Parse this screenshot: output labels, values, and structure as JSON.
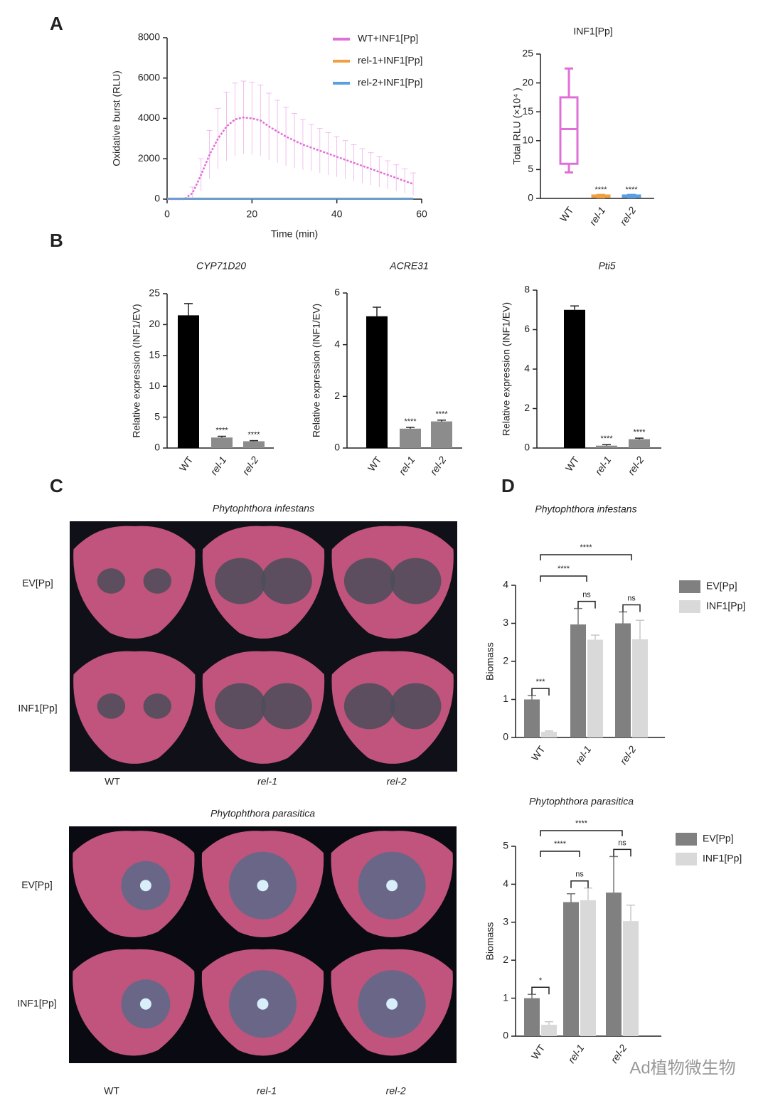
{
  "panels": [
    "A",
    "B",
    "C",
    "D"
  ],
  "watermark": "Ad植物微生物",
  "photos": [
    {
      "title": "Phytophthora infestans",
      "rows": [
        "EV[Pp]",
        "INF1[Pp]"
      ],
      "columns": [
        "WT",
        "rel-1",
        "rel-2"
      ]
    },
    {
      "title": "Phytophthora parasitica",
      "rows": [
        "EV[Pp]",
        "INF1[Pp]"
      ],
      "columns": [
        "WT",
        "rel-1",
        "rel-2"
      ]
    }
  ],
  "chart_data": [
    {
      "type": "line",
      "xlabel": "Time (min)",
      "ylabel": "Oxidative burst (RLU)",
      "x": [
        0,
        2,
        4,
        6,
        8,
        10,
        12,
        14,
        16,
        18,
        20,
        22,
        24,
        26,
        28,
        30,
        32,
        34,
        36,
        38,
        40,
        42,
        44,
        46,
        48,
        50,
        52,
        54,
        56,
        58
      ],
      "xlim": [
        0,
        60
      ],
      "xticks": [
        0,
        20,
        40,
        60
      ],
      "ylim": [
        0,
        8000
      ],
      "yticks": [
        0,
        2000,
        4000,
        6000,
        8000
      ],
      "series": [
        {
          "name": "WT+INF1[Pp]",
          "color": "#e070d8",
          "values": [
            0,
            0,
            0,
            300,
            1200,
            2200,
            3000,
            3600,
            3950,
            4050,
            4000,
            3900,
            3600,
            3350,
            3100,
            2900,
            2700,
            2550,
            2400,
            2250,
            2100,
            1950,
            1800,
            1650,
            1500,
            1350,
            1200,
            1050,
            900,
            750
          ],
          "errors": [
            0,
            0,
            0,
            300,
            800,
            1200,
            1500,
            1700,
            1800,
            1800,
            1800,
            1750,
            1650,
            1550,
            1450,
            1350,
            1250,
            1150,
            1100,
            1050,
            1000,
            950,
            900,
            850,
            800,
            750,
            700,
            650,
            600,
            550
          ]
        },
        {
          "name": "rel-1+INF1[Pp]",
          "color": "#f0a040",
          "values": [
            30,
            30,
            30,
            30,
            30,
            30,
            30,
            30,
            30,
            30,
            30,
            30,
            30,
            30,
            30,
            30,
            30,
            30,
            30,
            30,
            30,
            30,
            30,
            30,
            30,
            30,
            30,
            30,
            30,
            30
          ]
        },
        {
          "name": "rel-2+INF1[Pp]",
          "color": "#5aa0e0",
          "values": [
            20,
            20,
            20,
            20,
            20,
            20,
            20,
            20,
            20,
            20,
            20,
            20,
            20,
            20,
            20,
            20,
            20,
            20,
            20,
            20,
            20,
            20,
            20,
            20,
            20,
            20,
            20,
            20,
            20,
            20
          ]
        }
      ]
    },
    {
      "type": "box",
      "title": "INF1[Pp]",
      "ylabel": "Total RLU (×10⁴ )",
      "categories": [
        "WT",
        "rel-1",
        "rel-2"
      ],
      "colors": [
        "#e070d8",
        "#f0a040",
        "#5aa0e0"
      ],
      "boxes": [
        {
          "min": 4.5,
          "q1": 6,
          "median": 12,
          "q3": 17.5,
          "max": 22.5
        },
        {
          "min": 0.2,
          "q1": 0.3,
          "median": 0.4,
          "q3": 0.5,
          "max": 0.6
        },
        {
          "min": 0.2,
          "q1": 0.3,
          "median": 0.4,
          "q3": 0.5,
          "max": 0.6
        }
      ],
      "labels": [
        null,
        "****",
        "****"
      ],
      "ylim": [
        0,
        25
      ],
      "yticks": [
        0,
        5,
        10,
        15,
        20,
        25
      ]
    },
    {
      "type": "bar",
      "title": "CYP71D20",
      "ylabel": "Relative expression (INF1/EV)",
      "categories": [
        "WT",
        "rel-1",
        "rel-2"
      ],
      "colors": [
        "#000000",
        "#8c8c8c",
        "#8c8c8c"
      ],
      "values": [
        21.5,
        1.7,
        1.1
      ],
      "errors": [
        1.9,
        0.2,
        0.1
      ],
      "labels": [
        null,
        "****",
        "****"
      ],
      "ylim": [
        0,
        25
      ],
      "yticks": [
        0,
        5,
        10,
        15,
        20,
        25
      ]
    },
    {
      "type": "bar",
      "title": "ACRE31",
      "ylabel": "Relative expression (INF1/EV)",
      "categories": [
        "WT",
        "rel-1",
        "rel-2"
      ],
      "colors": [
        "#000000",
        "#8c8c8c",
        "#8c8c8c"
      ],
      "values": [
        5.1,
        0.75,
        1.03
      ],
      "errors": [
        0.35,
        0.05,
        0.05
      ],
      "labels": [
        null,
        "****",
        "****"
      ],
      "ylim": [
        0,
        6
      ],
      "yticks": [
        0,
        2,
        4,
        6
      ]
    },
    {
      "type": "bar",
      "title": "Pti5",
      "ylabel": "Relative expression (INF1/EV)",
      "categories": [
        "WT",
        "rel-1",
        "rel-2"
      ],
      "colors": [
        "#000000",
        "#8c8c8c",
        "#8c8c8c"
      ],
      "values": [
        7.0,
        0.12,
        0.45
      ],
      "errors": [
        0.2,
        0.05,
        0.05
      ],
      "labels": [
        null,
        "****",
        "****"
      ],
      "ylim": [
        0,
        8
      ],
      "yticks": [
        0,
        2,
        4,
        6,
        8
      ]
    },
    {
      "type": "grouped_bar",
      "title": "Phytophthora infestans",
      "ylabel": "Biomass",
      "categories": [
        "WT",
        "rel-1",
        "rel-2"
      ],
      "series": [
        {
          "name": "EV[Pp]",
          "color": "#808080",
          "values": [
            1.0,
            2.97,
            3.0
          ],
          "errors": [
            0.1,
            0.42,
            0.3
          ]
        },
        {
          "name": "INF1[Pp]",
          "color": "#d9d9d9",
          "values": [
            0.15,
            2.57,
            2.58
          ],
          "errors": [
            0.02,
            0.12,
            0.5
          ]
        }
      ],
      "pair_labels": [
        "***",
        "ns",
        "ns"
      ],
      "comparisons": [
        "****",
        "****"
      ],
      "ylim": [
        0,
        4
      ],
      "yticks": [
        0,
        1,
        2,
        3,
        4
      ]
    },
    {
      "type": "grouped_bar",
      "title": "Phytophthora parasitica",
      "ylabel": "Biomass",
      "categories": [
        "WT",
        "rel-1",
        "rel-2"
      ],
      "series": [
        {
          "name": "EV[Pp]",
          "color": "#808080",
          "values": [
            1.0,
            3.53,
            3.78
          ],
          "errors": [
            0.1,
            0.22,
            0.95
          ]
        },
        {
          "name": "INF1[Pp]",
          "color": "#d9d9d9",
          "values": [
            0.3,
            3.58,
            3.03
          ],
          "errors": [
            0.08,
            0.32,
            0.42
          ]
        }
      ],
      "pair_labels": [
        "*",
        "ns",
        "ns"
      ],
      "comparisons": [
        "****",
        "****"
      ],
      "ylim": [
        0,
        5
      ],
      "yticks": [
        0,
        1,
        2,
        3,
        4,
        5
      ]
    }
  ]
}
